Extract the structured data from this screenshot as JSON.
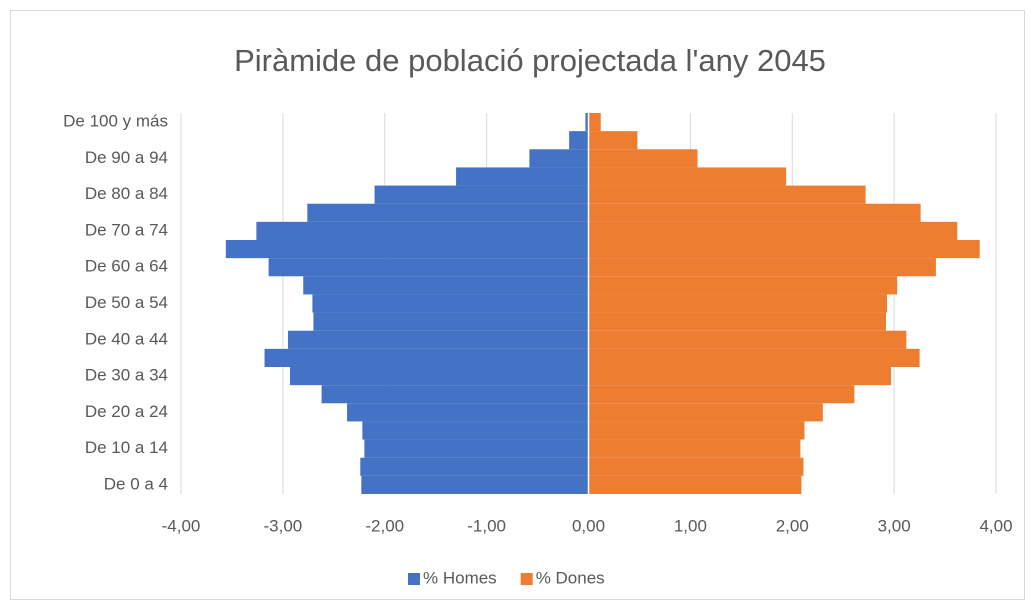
{
  "chart_data": {
    "type": "pyramid",
    "title": "Piràmide de població projectada l'any 2045",
    "categories": [
      "De 0 a 4",
      null,
      "De 10 a 14",
      null,
      "De 20 a 24",
      null,
      "De 30 a 34",
      null,
      "De 40 a 44",
      null,
      "De 50 a 54",
      null,
      "De 60 a 64",
      null,
      "De 70 a 74",
      null,
      "De 80 a 84",
      null,
      "De 90 a 94",
      null,
      "De 100 y más"
    ],
    "series": [
      {
        "name": "% Homes",
        "color": "#4472c4",
        "values": [
          -2.23,
          -2.24,
          -2.2,
          -2.22,
          -2.37,
          -2.62,
          -2.93,
          -3.18,
          -2.95,
          -2.7,
          -2.71,
          -2.8,
          -3.14,
          -3.56,
          -3.26,
          -2.76,
          -2.1,
          -1.3,
          -0.58,
          -0.19,
          -0.03
        ]
      },
      {
        "name": "% Dones",
        "color": "#ed7d31",
        "values": [
          2.09,
          2.11,
          2.08,
          2.12,
          2.3,
          2.61,
          2.97,
          3.25,
          3.12,
          2.92,
          2.93,
          3.03,
          3.41,
          3.84,
          3.62,
          3.26,
          2.72,
          1.94,
          1.07,
          0.48,
          0.12
        ]
      }
    ],
    "xlim": [
      -4,
      4
    ],
    "xticks": [
      {
        "value": -4,
        "label": "-4,00"
      },
      {
        "value": -3,
        "label": "-3,00"
      },
      {
        "value": -2,
        "label": "-2,00"
      },
      {
        "value": -1,
        "label": "-1,00"
      },
      {
        "value": 0,
        "label": "0,00"
      },
      {
        "value": 1,
        "label": "1,00"
      },
      {
        "value": 2,
        "label": "2,00"
      },
      {
        "value": 3,
        "label": "3,00"
      },
      {
        "value": 4,
        "label": "4,00"
      }
    ],
    "grid": true,
    "legend": "bottom"
  }
}
